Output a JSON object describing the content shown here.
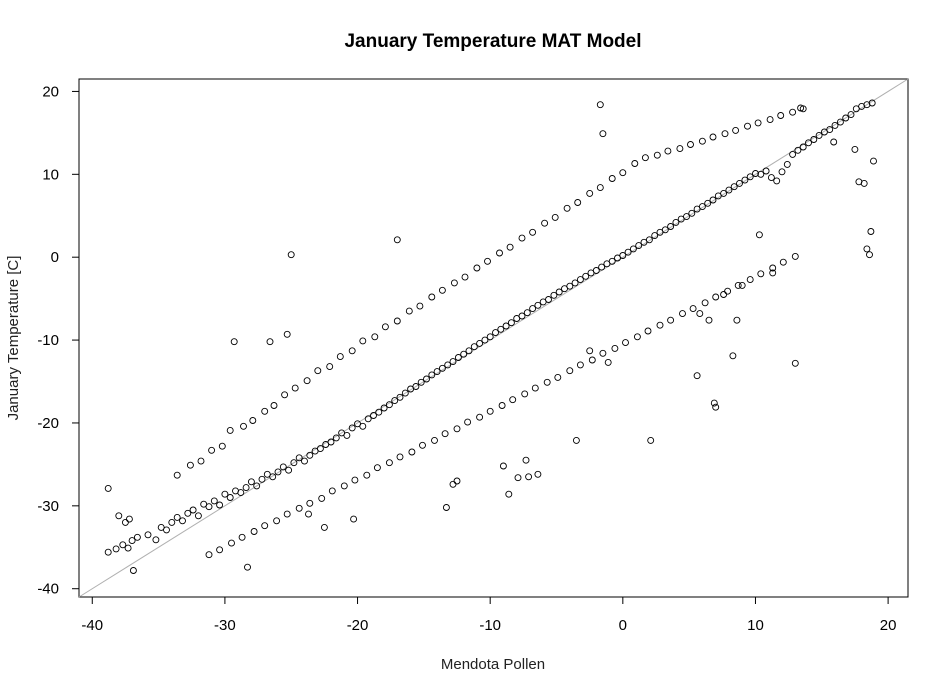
{
  "chart_data": {
    "type": "scatter",
    "title": "January Temperature MAT Model",
    "xlabel": "Mendota Pollen",
    "ylabel": "January Temperature [C]",
    "xlim": [
      -41,
      21.5
    ],
    "ylim": [
      -41,
      21.5
    ],
    "xticks": [
      -40,
      -30,
      -20,
      -10,
      0,
      10,
      20
    ],
    "yticks": [
      -40,
      -30,
      -20,
      -10,
      0,
      10,
      20
    ],
    "xtick_labels": [
      "-40",
      "-30",
      "-20",
      "-10",
      "0",
      "10",
      "20"
    ],
    "ytick_labels": [
      "-40",
      "-30",
      "-20",
      "-10",
      "0",
      "10",
      "20"
    ],
    "grid": false,
    "reference_line": {
      "slope": 1,
      "intercept": 0,
      "color": "#b0b0b0"
    },
    "marker": "open-circle",
    "point_color": "#000000",
    "series": [
      {
        "main_trend": {
          "x": [
            -38.8,
            -38.2,
            -37.7,
            -37.3,
            -37.0,
            -36.6,
            -35.8,
            -35.2,
            -34.8,
            -34.4,
            -34.0,
            -33.6,
            -33.2,
            -32.8,
            -32.4,
            -32.0,
            -31.6,
            -31.2,
            -30.8,
            -30.4,
            -30.0,
            -29.6,
            -29.2,
            -28.8,
            -28.4,
            -28.0,
            -27.6,
            -27.2,
            -26.8,
            -26.4,
            -26.0,
            -25.6,
            -25.2,
            -24.8,
            -24.4,
            -24.0,
            -23.6,
            -23.2,
            -22.8,
            -22.4,
            -22.0,
            -21.6,
            -21.2,
            -20.8,
            -20.4,
            -20.0,
            -19.6,
            -19.2,
            -18.8,
            -18.4,
            -18.0,
            -17.6,
            -17.2,
            -16.8,
            -16.4,
            -16.0,
            -15.6,
            -15.2,
            -14.8,
            -14.4,
            -14.0,
            -13.6,
            -13.2,
            -12.8,
            -12.4,
            -12.0,
            -11.6,
            -11.2,
            -10.8,
            -10.4,
            -10.0,
            -9.6,
            -9.2,
            -8.8,
            -8.4,
            -8.0,
            -7.6,
            -7.2,
            -6.8,
            -6.4,
            -6.0,
            -5.6,
            -5.2,
            -4.8,
            -4.4,
            -4.0,
            -3.6,
            -3.2,
            -2.8,
            -2.4,
            -2.0,
            -1.6,
            -1.2,
            -0.8,
            -0.4,
            0.0,
            0.4,
            0.8,
            1.2,
            1.6,
            2.0,
            2.4,
            2.8,
            3.2,
            3.6,
            4.0,
            4.4,
            4.8,
            5.2,
            5.6,
            6.0,
            6.4,
            6.8,
            7.2,
            7.6,
            8.0,
            8.4,
            8.8,
            9.2,
            9.6,
            10.0,
            10.4,
            10.8,
            11.2,
            11.6,
            12.0,
            12.4,
            12.8,
            13.2,
            13.6,
            14.0,
            14.4,
            14.8,
            15.2,
            15.6,
            16.0,
            16.4,
            16.8,
            17.2,
            17.6,
            18.0,
            18.4,
            18.8
          ],
          "y": [
            -35.6,
            -35.2,
            -34.7,
            -35.1,
            -34.2,
            -33.8,
            -33.5,
            -34.1,
            -32.6,
            -32.9,
            -32.0,
            -31.4,
            -31.8,
            -30.9,
            -30.5,
            -31.2,
            -29.8,
            -30.1,
            -29.4,
            -29.9,
            -28.6,
            -29.0,
            -28.2,
            -28.4,
            -27.8,
            -27.1,
            -27.6,
            -26.8,
            -26.2,
            -26.5,
            -25.9,
            -25.3,
            -25.7,
            -24.8,
            -24.2,
            -24.6,
            -23.9,
            -23.4,
            -23.1,
            -22.6,
            -22.3,
            -21.8,
            -21.2,
            -21.5,
            -20.6,
            -20.1,
            -20.4,
            -19.5,
            -19.1,
            -18.7,
            -18.2,
            -17.8,
            -17.3,
            -16.9,
            -16.4,
            -15.9,
            -15.6,
            -15.1,
            -14.7,
            -14.2,
            -13.8,
            -13.4,
            -13.0,
            -12.6,
            -12.1,
            -11.7,
            -11.3,
            -10.8,
            -10.4,
            -10.0,
            -9.6,
            -9.1,
            -8.7,
            -8.3,
            -7.9,
            -7.4,
            -7.1,
            -6.7,
            -6.2,
            -5.8,
            -5.4,
            -5.1,
            -4.6,
            -4.2,
            -3.8,
            -3.5,
            -3.1,
            -2.7,
            -2.3,
            -1.9,
            -1.6,
            -1.2,
            -0.8,
            -0.5,
            -0.1,
            0.2,
            0.6,
            1.0,
            1.4,
            1.8,
            2.1,
            2.6,
            3.0,
            3.3,
            3.7,
            4.2,
            4.6,
            4.9,
            5.3,
            5.8,
            6.1,
            6.5,
            6.9,
            7.4,
            7.7,
            8.1,
            8.5,
            8.9,
            9.3,
            9.7,
            10.1,
            10.0,
            10.4,
            9.6,
            9.2,
            10.3,
            11.2,
            12.4,
            12.9,
            13.3,
            13.8,
            14.2,
            14.7,
            15.1,
            15.4,
            15.9,
            16.3,
            16.8,
            17.2,
            17.9,
            18.2,
            18.4,
            18.6
          ]
        },
        "upper_scatter": {
          "x": [
            -33.6,
            -32.6,
            -31.8,
            -31.0,
            -30.2,
            -29.6,
            -28.6,
            -27.9,
            -27.0,
            -26.3,
            -25.5,
            -24.7,
            -23.8,
            -23.0,
            -22.1,
            -21.3,
            -20.4,
            -19.6,
            -18.7,
            -17.9,
            -17.0,
            -16.1,
            -15.3,
            -14.4,
            -13.6,
            -12.7,
            -11.9,
            -11.0,
            -10.2,
            -9.3,
            -8.5,
            -7.6,
            -6.8,
            -5.9,
            -5.1,
            -4.2,
            -3.4,
            -2.5,
            -1.7,
            -0.8,
            0.0,
            0.9,
            1.7,
            2.6,
            3.4,
            4.3,
            5.1,
            6.0,
            6.8,
            7.7,
            8.5,
            9.4,
            10.2,
            11.1,
            11.9,
            12.8,
            13.6
          ],
          "y": [
            -26.3,
            -25.1,
            -24.6,
            -23.3,
            -22.8,
            -20.9,
            -20.4,
            -19.7,
            -18.6,
            -17.9,
            -16.6,
            -15.8,
            -14.9,
            -13.7,
            -13.2,
            -12.0,
            -11.3,
            -10.1,
            -9.6,
            -8.4,
            -7.7,
            -6.5,
            -5.9,
            -4.8,
            -4.0,
            -3.1,
            -2.4,
            -1.3,
            -0.5,
            0.5,
            1.2,
            2.3,
            3.0,
            4.1,
            4.8,
            5.9,
            6.6,
            7.7,
            8.4,
            9.5,
            10.2,
            11.3,
            12.0,
            12.3,
            12.8,
            13.1,
            13.6,
            14.0,
            14.5,
            14.9,
            15.3,
            15.8,
            16.2,
            16.6,
            17.1,
            17.5,
            17.9
          ]
        },
        "lower_scatter": {
          "x": [
            -31.2,
            -30.4,
            -29.5,
            -28.7,
            -27.8,
            -27.0,
            -26.1,
            -25.3,
            -24.4,
            -23.6,
            -22.7,
            -21.9,
            -21.0,
            -20.2,
            -19.3,
            -18.5,
            -17.6,
            -16.8,
            -15.9,
            -15.1,
            -14.2,
            -13.4,
            -12.5,
            -11.7,
            -10.8,
            -10.0,
            -9.1,
            -8.3,
            -7.4,
            -6.6,
            -5.7,
            -4.9,
            -4.0,
            -3.2,
            -2.3,
            -1.5,
            -0.6,
            0.2,
            1.1,
            1.9,
            2.8,
            3.6,
            4.5,
            5.3,
            6.2,
            7.0,
            7.9,
            8.7,
            9.6,
            10.4,
            11.3,
            12.1,
            13.0
          ],
          "y": [
            -35.9,
            -35.3,
            -34.5,
            -33.8,
            -33.1,
            -32.4,
            -31.8,
            -31.0,
            -30.3,
            -29.7,
            -29.1,
            -28.2,
            -27.6,
            -26.9,
            -26.3,
            -25.4,
            -24.8,
            -24.1,
            -23.5,
            -22.7,
            -22.1,
            -21.3,
            -20.7,
            -19.9,
            -19.3,
            -18.6,
            -17.9,
            -17.2,
            -16.5,
            -15.8,
            -15.1,
            -14.5,
            -13.7,
            -13.0,
            -12.4,
            -11.6,
            -11.0,
            -10.3,
            -9.6,
            -8.9,
            -8.2,
            -7.6,
            -6.8,
            -6.2,
            -5.5,
            -4.8,
            -4.1,
            -3.4,
            -2.7,
            -2.0,
            -1.3,
            -0.6,
            0.1
          ]
        },
        "outliers": {
          "x": [
            -38.8,
            -38.0,
            -37.5,
            -37.2,
            -36.9,
            -29.3,
            -28.3,
            -26.6,
            -25.3,
            -25.0,
            -23.7,
            -22.5,
            -20.3,
            -17.0,
            -12.8,
            -12.5,
            -13.3,
            -9.0,
            -8.6,
            -7.9,
            -7.3,
            -7.1,
            -6.4,
            -3.5,
            -2.5,
            -1.7,
            -1.5,
            -1.1,
            2.1,
            5.6,
            5.8,
            6.5,
            6.9,
            7.0,
            7.6,
            8.3,
            8.6,
            9.0,
            10.3,
            11.3,
            13.0,
            13.4,
            15.9,
            17.5,
            17.8,
            18.2,
            18.4,
            18.6,
            18.7,
            18.9
          ],
          "y": [
            -27.9,
            -31.2,
            -32.0,
            -31.6,
            -37.8,
            -10.2,
            -37.4,
            -10.2,
            -9.3,
            0.3,
            -31.0,
            -32.6,
            -31.6,
            2.1,
            -27.4,
            -27.0,
            -30.2,
            -25.2,
            -28.6,
            -26.6,
            -24.5,
            -26.5,
            -26.2,
            -22.1,
            -11.3,
            18.4,
            14.9,
            -12.7,
            -22.1,
            -14.3,
            -6.8,
            -7.6,
            -17.6,
            -18.1,
            -4.5,
            -11.9,
            -7.6,
            -3.4,
            2.7,
            -1.9,
            -12.8,
            18.0,
            13.9,
            13.0,
            9.1,
            8.9,
            1.0,
            0.3,
            3.1,
            11.6
          ]
        }
      }
    ]
  }
}
